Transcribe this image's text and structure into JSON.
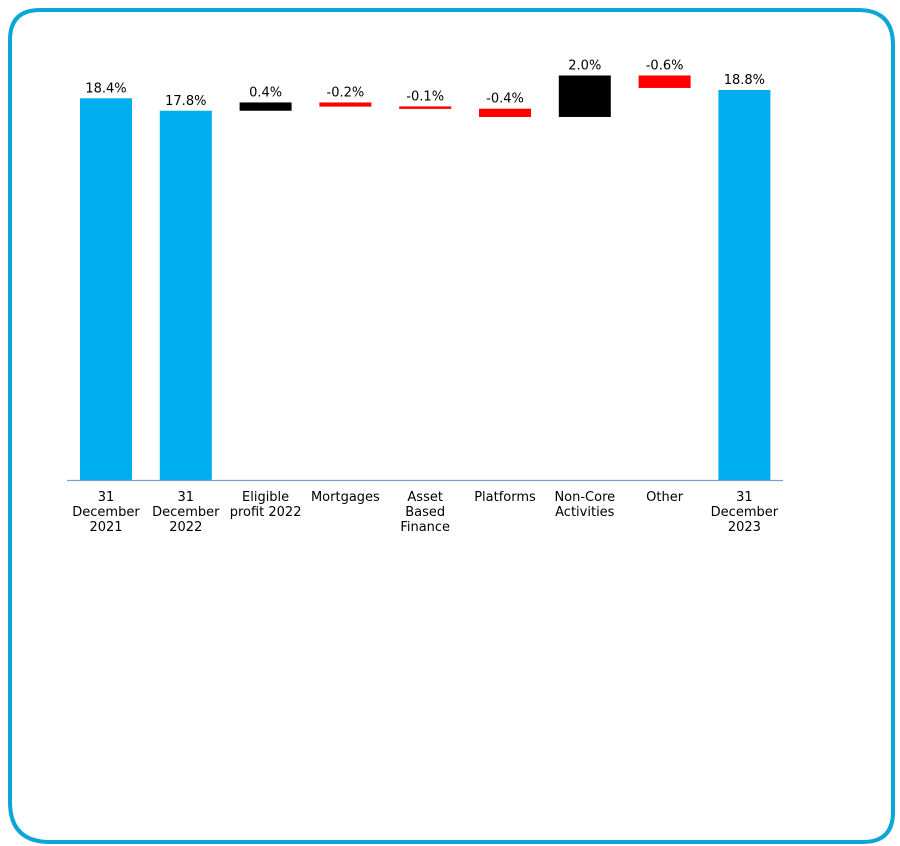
{
  "colors": {
    "frame": "#0aa6d8",
    "total": "#00adef",
    "increase": "#000000",
    "decrease": "#ff0000",
    "axis": "#7f9fcf"
  },
  "chart_data": {
    "type": "bar",
    "subtype": "waterfall",
    "title": "",
    "xlabel": "",
    "ylabel": "",
    "grid": false,
    "legend": "none",
    "ylim": [
      0,
      21.5
    ],
    "categories": [
      "31 December 2021",
      "31 December 2022",
      "Eligible profit 2022",
      "Mortgages",
      "Asset Based Finance",
      "Platforms",
      "Non-Core Activities",
      "Other",
      "31 December 2023"
    ],
    "category_lines": [
      [
        "31",
        "December",
        "2021"
      ],
      [
        "31",
        "December",
        "2022"
      ],
      [
        "Eligible",
        "profit 2022"
      ],
      [
        "Mortgages"
      ],
      [
        "Asset",
        "Based",
        "Finance"
      ],
      [
        "Platforms"
      ],
      [
        "Non-Core",
        "Activities"
      ],
      [
        "Other"
      ],
      [
        "31",
        "December",
        "2023"
      ]
    ],
    "values": [
      18.4,
      17.8,
      0.4,
      -0.2,
      -0.1,
      -0.4,
      2.0,
      -0.6,
      18.8
    ],
    "kinds": [
      "total",
      "total",
      "delta",
      "delta",
      "delta",
      "delta",
      "delta",
      "delta",
      "total"
    ],
    "data_labels": [
      "18.4%",
      "17.8%",
      "0.4%",
      "-0.2%",
      "-0.1%",
      "-0.4%",
      "2.0%",
      "-0.6%",
      "18.8%"
    ]
  }
}
